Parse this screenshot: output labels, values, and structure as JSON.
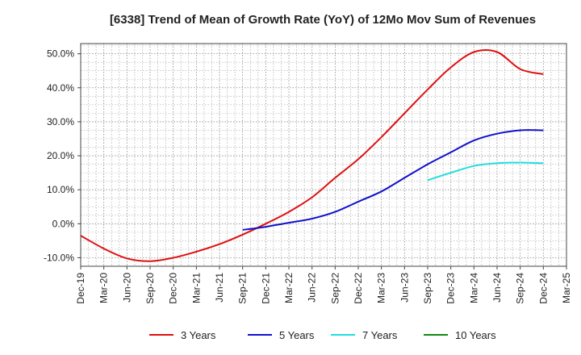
{
  "chart_data": {
    "type": "line",
    "title": "[6338]  Trend of Mean of Growth Rate (YoY) of 12Mo Mov Sum of Revenues",
    "xlabel": "",
    "ylabel": "",
    "ylim": [
      -12.5,
      53
    ],
    "yticks": [
      -10,
      0,
      10,
      20,
      30,
      40,
      50
    ],
    "ytick_labels": [
      "-10.0%",
      "0.0%",
      "10.0%",
      "20.0%",
      "30.0%",
      "40.0%",
      "50.0%"
    ],
    "x_tick_labels": [
      "Dec-19",
      "Mar-20",
      "Jun-20",
      "Sep-20",
      "Dec-20",
      "Mar-21",
      "Jun-21",
      "Sep-21",
      "Dec-21",
      "Mar-22",
      "Jun-22",
      "Sep-22",
      "Dec-22",
      "Mar-23",
      "Jun-23",
      "Sep-23",
      "Dec-23",
      "Mar-24",
      "Jun-24",
      "Sep-24",
      "Dec-24",
      "Mar-25"
    ],
    "grid": true,
    "legend_position": "bottom",
    "series": [
      {
        "name": "3 Years",
        "color": "#dd1111",
        "start_index": 0,
        "values": [
          -3.5,
          -7.3,
          -10.2,
          -11.0,
          -10.0,
          -8.2,
          -6.0,
          -3.2,
          0.0,
          3.5,
          7.8,
          13.5,
          19.0,
          25.5,
          32.5,
          39.5,
          46.0,
          50.5,
          50.5,
          45.5,
          44.0
        ]
      },
      {
        "name": "5 Years",
        "color": "#1111cc",
        "start_index": 7,
        "values": [
          -1.8,
          -0.9,
          0.3,
          1.5,
          3.5,
          6.5,
          9.5,
          13.5,
          17.5,
          21.0,
          24.5,
          26.5,
          27.5,
          27.5
        ]
      },
      {
        "name": "7 Years",
        "color": "#22dddd",
        "start_index": 15,
        "values": [
          12.8,
          15.0,
          17.0,
          17.8,
          18.0,
          17.8
        ]
      },
      {
        "name": "10 Years",
        "color": "#118811",
        "start_index": 0,
        "values": []
      }
    ]
  }
}
